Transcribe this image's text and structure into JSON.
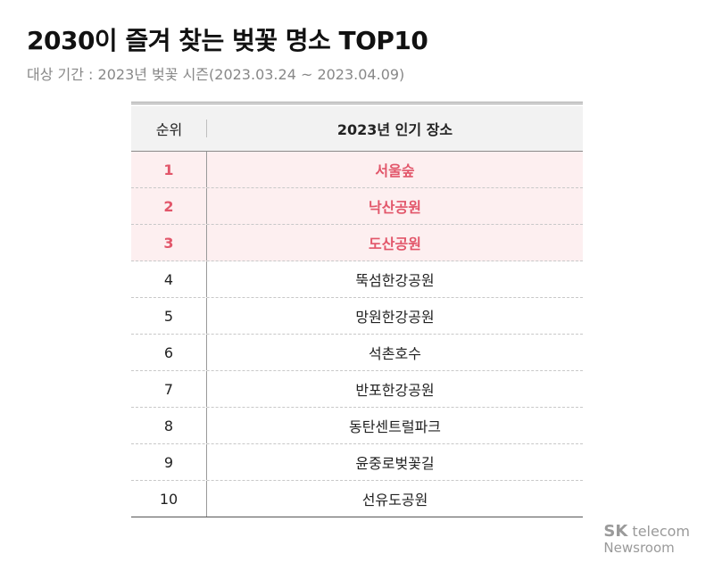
{
  "title": "2030이 즐겨 찾는 벚꽃 명소 TOP10",
  "subtitle": "대상 기간 : 2023년 벚꽃 시즌(2023.03.24 ~ 2023.04.09)",
  "table": {
    "headers": {
      "rank": "순위",
      "place": "2023년 인기 장소"
    },
    "rows": [
      {
        "rank": "1",
        "place": "서울숲"
      },
      {
        "rank": "2",
        "place": "낙산공원"
      },
      {
        "rank": "3",
        "place": "도산공원"
      },
      {
        "rank": "4",
        "place": "뚝섬한강공원"
      },
      {
        "rank": "5",
        "place": "망원한강공원"
      },
      {
        "rank": "6",
        "place": "석촌호수"
      },
      {
        "rank": "7",
        "place": "반포한강공원"
      },
      {
        "rank": "8",
        "place": "동탄센트럴파크"
      },
      {
        "rank": "9",
        "place": "윤중로벚꽃길"
      },
      {
        "rank": "10",
        "place": "선유도공원"
      }
    ]
  },
  "brand": {
    "sk": "SK",
    "telecom": "telecom",
    "newsroom": "Newsroom"
  },
  "colors": {
    "highlight_text": "#e2566a",
    "highlight_bg": "#fdeff0",
    "header_bg": "#f2f2f2"
  }
}
